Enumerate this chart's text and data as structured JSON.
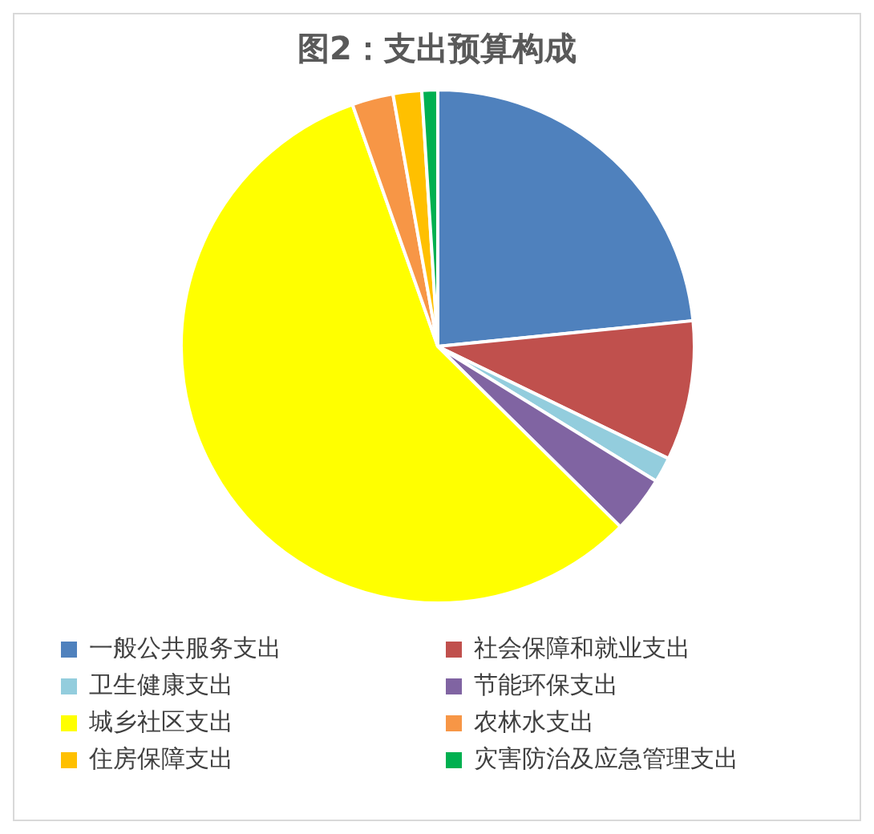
{
  "chart_data": {
    "type": "pie",
    "title": "图2：支出预算构成",
    "categories": [
      "一般公共服务支出",
      "社会保障和就业支出",
      "卫生健康支出",
      "节能环保支出",
      "城乡社区支出",
      "农林水支出",
      "住房保障支出",
      "灾害防治及应急管理支出"
    ],
    "values": [
      23.4,
      8.8,
      1.6,
      3.6,
      57.2,
      2.6,
      1.8,
      1.0
    ],
    "colors": [
      "#4f81bd",
      "#c0504d",
      "#93cddd",
      "#8064a2",
      "#ffff00",
      "#f79646",
      "#ffc000",
      "#00b050"
    ],
    "legend": "bottom"
  }
}
